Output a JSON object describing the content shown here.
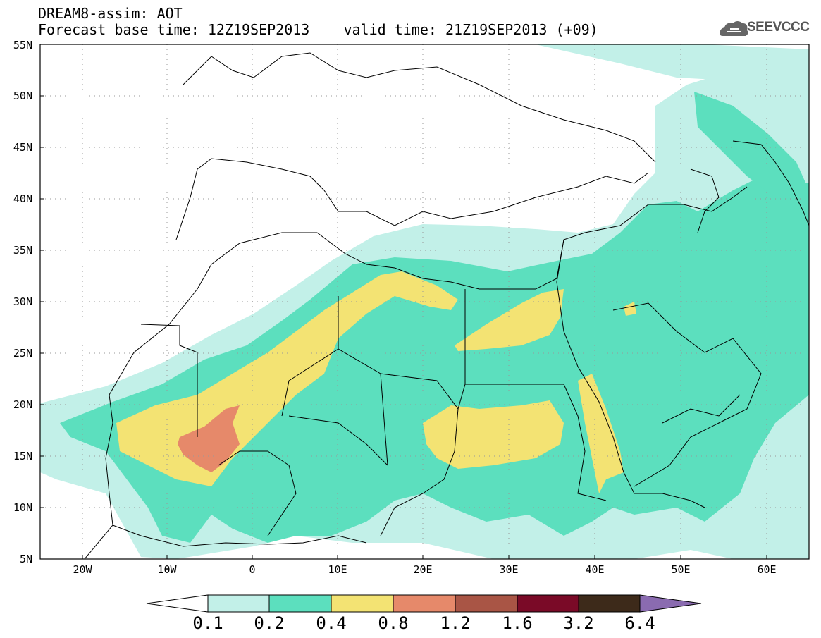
{
  "header": {
    "title_line1": "DREAM8-assim: AOT",
    "title_line2": "Forecast base time: 12Z19SEP2013    valid time: 21Z19SEP2013 (+09)",
    "logo_text": "SEEVCCC"
  },
  "map": {
    "lat_labels": [
      "55N",
      "50N",
      "45N",
      "40N",
      "35N",
      "30N",
      "25N",
      "20N",
      "15N",
      "10N",
      "5N"
    ],
    "lon_labels": [
      "20W",
      "10W",
      "0",
      "10E",
      "20E",
      "30E",
      "40E",
      "50E",
      "60E"
    ],
    "colors": {
      "level_0_1": "#c2f0e8",
      "level_0_2": "#5cdfbe",
      "level_0_4": "#f3e373",
      "level_0_8": "#e6896a",
      "level_1_2": "#a95545",
      "level_1_6": "#7a0a27",
      "level_3_2": "#3d2a1a",
      "level_6_4": "#8a6bb0"
    }
  },
  "colorbar": {
    "labels": [
      "0.1",
      "0.2",
      "0.4",
      "0.8",
      "1.2",
      "1.6",
      "3.2",
      "6.4"
    ],
    "colors": [
      "#ffffff",
      "#c2f0e8",
      "#5cdfbe",
      "#f3e373",
      "#e6896a",
      "#a95545",
      "#7a0a27",
      "#3d2a1a",
      "#8a6bb0"
    ]
  }
}
